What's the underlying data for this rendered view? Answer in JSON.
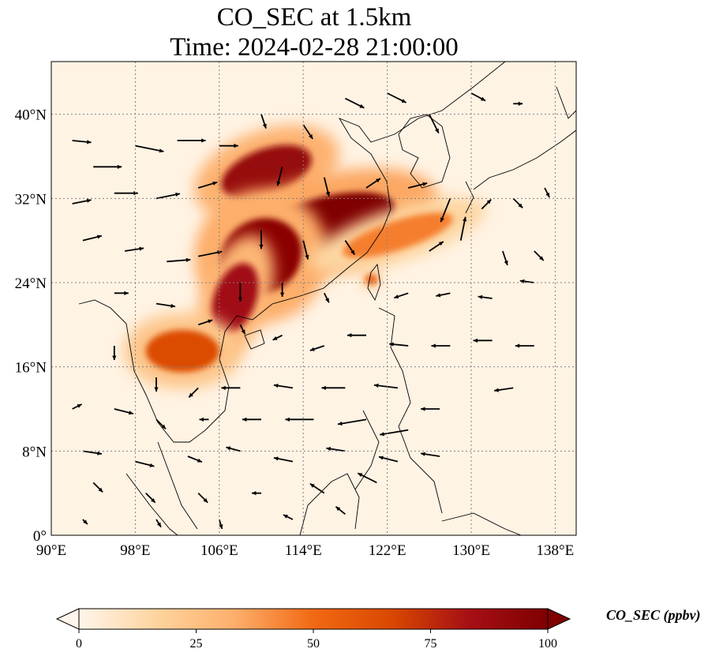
{
  "title": {
    "line1": "CO_SEC at 1.5km",
    "line2": "Time: 2024-02-28 21:00:00"
  },
  "map": {
    "extent": {
      "lon": [
        90,
        140
      ],
      "lat": [
        0,
        45
      ]
    },
    "lon_ticks": [
      {
        "value": 90,
        "label": "90°E"
      },
      {
        "value": 98,
        "label": "98°E"
      },
      {
        "value": 106,
        "label": "106°E"
      },
      {
        "value": 114,
        "label": "114°E"
      },
      {
        "value": 122,
        "label": "122°E"
      },
      {
        "value": 130,
        "label": "130°E"
      },
      {
        "value": 138,
        "label": "138°E"
      }
    ],
    "lat_ticks": [
      {
        "value": 0,
        "label": "0°"
      },
      {
        "value": 8,
        "label": "8°N"
      },
      {
        "value": 16,
        "label": "16°N"
      },
      {
        "value": 24,
        "label": "24°N"
      },
      {
        "value": 32,
        "label": "32°N"
      },
      {
        "value": 40,
        "label": "40°N"
      }
    ],
    "gridlines": true,
    "plume_regions": [
      {
        "name": "north-china-plain",
        "lon": 110.5,
        "lat": 34.5,
        "rx": 4.5,
        "ry": 2.2,
        "rot": -20,
        "level": 90
      },
      {
        "name": "yangtze-basin",
        "lon": 116,
        "lat": 29.5,
        "rx": 7,
        "ry": 2.6,
        "rot": -15,
        "level": 100
      },
      {
        "name": "central-china",
        "lon": 110,
        "lat": 26.5,
        "rx": 4,
        "ry": 3.5,
        "rot": -30,
        "level": 95
      },
      {
        "name": "south-china",
        "lon": 107.5,
        "lat": 22.5,
        "rx": 2,
        "ry": 3.5,
        "rot": 20,
        "level": 85
      },
      {
        "name": "indochina",
        "lon": 102.5,
        "lat": 17.5,
        "rx": 3.5,
        "ry": 2,
        "rot": 0,
        "level": 65
      },
      {
        "name": "east-china-sea",
        "lon": 123,
        "lat": 28.5,
        "rx": 5.5,
        "ry": 1.4,
        "rot": -18,
        "level": 45
      },
      {
        "name": "taiwan",
        "lon": 120.5,
        "lat": 24.3,
        "rx": 0.6,
        "ry": 0.5,
        "rot": 0,
        "level": 55
      }
    ],
    "wind_vectors": [
      {
        "lon": 92,
        "lat": 37.5,
        "u": 2,
        "v": -0.2
      },
      {
        "lon": 94,
        "lat": 35,
        "u": 3,
        "v": 0
      },
      {
        "lon": 98,
        "lat": 37,
        "u": 3,
        "v": -0.6
      },
      {
        "lon": 102,
        "lat": 37.5,
        "u": 3,
        "v": 0
      },
      {
        "lon": 106,
        "lat": 37,
        "u": 2,
        "v": 0
      },
      {
        "lon": 92,
        "lat": 31.5,
        "u": 2,
        "v": 0.4
      },
      {
        "lon": 96,
        "lat": 32.5,
        "u": 2.5,
        "v": 0
      },
      {
        "lon": 100,
        "lat": 32,
        "u": 2.5,
        "v": 0.5
      },
      {
        "lon": 104,
        "lat": 33,
        "u": 2,
        "v": 0.6
      },
      {
        "lon": 93,
        "lat": 28,
        "u": 2,
        "v": 0.5
      },
      {
        "lon": 97,
        "lat": 27,
        "u": 2,
        "v": 0.3
      },
      {
        "lon": 101,
        "lat": 26,
        "u": 2.5,
        "v": 0.2
      },
      {
        "lon": 104,
        "lat": 26.5,
        "u": 2.5,
        "v": 0.5
      },
      {
        "lon": 96,
        "lat": 23,
        "u": 1.5,
        "v": 0
      },
      {
        "lon": 100,
        "lat": 22,
        "u": 2,
        "v": -0.3
      },
      {
        "lon": 110,
        "lat": 40,
        "u": 0.5,
        "v": -1.5
      },
      {
        "lon": 114,
        "lat": 39,
        "u": 1,
        "v": -1.5
      },
      {
        "lon": 118,
        "lat": 41.5,
        "u": 2,
        "v": -1
      },
      {
        "lon": 122,
        "lat": 42,
        "u": 2,
        "v": -1
      },
      {
        "lon": 126,
        "lat": 40,
        "u": 1,
        "v": -2
      },
      {
        "lon": 130,
        "lat": 42,
        "u": 1.5,
        "v": -0.8
      },
      {
        "lon": 134,
        "lat": 41,
        "u": 1,
        "v": 0
      },
      {
        "lon": 112,
        "lat": 35,
        "u": -0.5,
        "v": -2
      },
      {
        "lon": 116,
        "lat": 34,
        "u": 0.5,
        "v": -2
      },
      {
        "lon": 120,
        "lat": 33,
        "u": 1.5,
        "v": 1
      },
      {
        "lon": 124,
        "lat": 33,
        "u": 2,
        "v": 0.5
      },
      {
        "lon": 128,
        "lat": 32,
        "u": -1,
        "v": -2.5
      },
      {
        "lon": 131,
        "lat": 31,
        "u": 1,
        "v": 1
      },
      {
        "lon": 134,
        "lat": 32,
        "u": 1,
        "v": -1
      },
      {
        "lon": 137,
        "lat": 33,
        "u": 0.5,
        "v": -1
      },
      {
        "lon": 110,
        "lat": 29,
        "u": 0,
        "v": -2
      },
      {
        "lon": 114,
        "lat": 28,
        "u": 0.5,
        "v": -2
      },
      {
        "lon": 118,
        "lat": 28,
        "u": 1,
        "v": -1.5
      },
      {
        "lon": 126,
        "lat": 27,
        "u": 1.5,
        "v": 1
      },
      {
        "lon": 129,
        "lat": 28,
        "u": 0.5,
        "v": 2.5
      },
      {
        "lon": 133,
        "lat": 27,
        "u": 0.5,
        "v": -1.5
      },
      {
        "lon": 136,
        "lat": 27,
        "u": 1,
        "v": -1
      },
      {
        "lon": 108,
        "lat": 24,
        "u": 0,
        "v": -2
      },
      {
        "lon": 112,
        "lat": 24,
        "u": 0,
        "v": -1.5
      },
      {
        "lon": 116,
        "lat": 23,
        "u": 0.5,
        "v": -1
      },
      {
        "lon": 124,
        "lat": 23,
        "u": -1.5,
        "v": -0.5
      },
      {
        "lon": 128,
        "lat": 23,
        "u": -1.5,
        "v": -0.3
      },
      {
        "lon": 132,
        "lat": 22.5,
        "u": -1.5,
        "v": 0.2
      },
      {
        "lon": 136,
        "lat": 24,
        "u": -1.5,
        "v": 0.2
      },
      {
        "lon": 104,
        "lat": 20,
        "u": 1.5,
        "v": 0.5
      },
      {
        "lon": 108,
        "lat": 20,
        "u": 0.5,
        "v": -1
      },
      {
        "lon": 112,
        "lat": 19,
        "u": -1,
        "v": -0.5
      },
      {
        "lon": 116,
        "lat": 18,
        "u": -1.5,
        "v": -0.5
      },
      {
        "lon": 120,
        "lat": 19,
        "u": -2,
        "v": 0
      },
      {
        "lon": 124,
        "lat": 18,
        "u": -2,
        "v": 0.2
      },
      {
        "lon": 128,
        "lat": 18,
        "u": -2,
        "v": 0
      },
      {
        "lon": 132,
        "lat": 18.5,
        "u": -2,
        "v": 0
      },
      {
        "lon": 136,
        "lat": 18,
        "u": -2,
        "v": 0
      },
      {
        "lon": 96,
        "lat": 18,
        "u": 0,
        "v": -1.5
      },
      {
        "lon": 100,
        "lat": 15,
        "u": 0,
        "v": -1.5
      },
      {
        "lon": 104,
        "lat": 14,
        "u": -1,
        "v": -1
      },
      {
        "lon": 108,
        "lat": 14,
        "u": -2,
        "v": 0
      },
      {
        "lon": 113,
        "lat": 14,
        "u": -2,
        "v": 0.3
      },
      {
        "lon": 118,
        "lat": 14,
        "u": -2.5,
        "v": 0
      },
      {
        "lon": 123,
        "lat": 14,
        "u": -2.5,
        "v": 0.3
      },
      {
        "lon": 127,
        "lat": 12,
        "u": -2,
        "v": 0
      },
      {
        "lon": 134,
        "lat": 14,
        "u": -2,
        "v": -0.3
      },
      {
        "lon": 92,
        "lat": 12,
        "u": 1,
        "v": 0.5
      },
      {
        "lon": 96,
        "lat": 12,
        "u": 2,
        "v": -0.5
      },
      {
        "lon": 100,
        "lat": 11,
        "u": 1,
        "v": -1
      },
      {
        "lon": 105,
        "lat": 11,
        "u": -1,
        "v": 0
      },
      {
        "lon": 110,
        "lat": 11,
        "u": -2,
        "v": 0
      },
      {
        "lon": 115,
        "lat": 11,
        "u": -3,
        "v": 0
      },
      {
        "lon": 120,
        "lat": 11,
        "u": -3,
        "v": -0.5
      },
      {
        "lon": 124,
        "lat": 10,
        "u": -3,
        "v": -0.5
      },
      {
        "lon": 93,
        "lat": 8,
        "u": 2,
        "v": -0.3
      },
      {
        "lon": 98,
        "lat": 7,
        "u": 2,
        "v": -0.5
      },
      {
        "lon": 103,
        "lat": 7.5,
        "u": 1.5,
        "v": -0.6
      },
      {
        "lon": 108,
        "lat": 8,
        "u": -1.5,
        "v": 0.4
      },
      {
        "lon": 113,
        "lat": 7,
        "u": -2,
        "v": 0.4
      },
      {
        "lon": 118,
        "lat": 8,
        "u": -2,
        "v": 0.3
      },
      {
        "lon": 123,
        "lat": 7,
        "u": -2,
        "v": 0.5
      },
      {
        "lon": 127,
        "lat": 7.5,
        "u": -2,
        "v": 0.3
      },
      {
        "lon": 94,
        "lat": 5,
        "u": 1,
        "v": -1
      },
      {
        "lon": 99,
        "lat": 4,
        "u": 1,
        "v": -1
      },
      {
        "lon": 104,
        "lat": 4,
        "u": 1,
        "v": -1
      },
      {
        "lon": 110,
        "lat": 4,
        "u": -1,
        "v": 0
      },
      {
        "lon": 116,
        "lat": 4,
        "u": -1.5,
        "v": 1
      },
      {
        "lon": 121,
        "lat": 5,
        "u": -2,
        "v": 1
      },
      {
        "lon": 93,
        "lat": 1.5,
        "u": 0.5,
        "v": -0.5
      },
      {
        "lon": 100,
        "lat": 1.5,
        "u": 0.5,
        "v": -0.8
      },
      {
        "lon": 106,
        "lat": 1.5,
        "u": 0.3,
        "v": -1
      },
      {
        "lon": 113,
        "lat": 1.5,
        "u": -1,
        "v": 0.5
      },
      {
        "lon": 118,
        "lat": 2,
        "u": -1,
        "v": 0.8
      }
    ]
  },
  "colorbar": {
    "title": "CO_SEC (ppbv)",
    "range": [
      0,
      100
    ],
    "ticks": [
      {
        "value": 0,
        "label": "0"
      },
      {
        "value": 25,
        "label": "25"
      },
      {
        "value": 50,
        "label": "50"
      },
      {
        "value": 75,
        "label": "75"
      },
      {
        "value": 100,
        "label": "100"
      }
    ],
    "colormap_stops": [
      "#fff5eb",
      "#fdd49e",
      "#fdae6b",
      "#f16913",
      "#d94801",
      "#a50f15",
      "#7f0000"
    ],
    "extend": "both"
  }
}
